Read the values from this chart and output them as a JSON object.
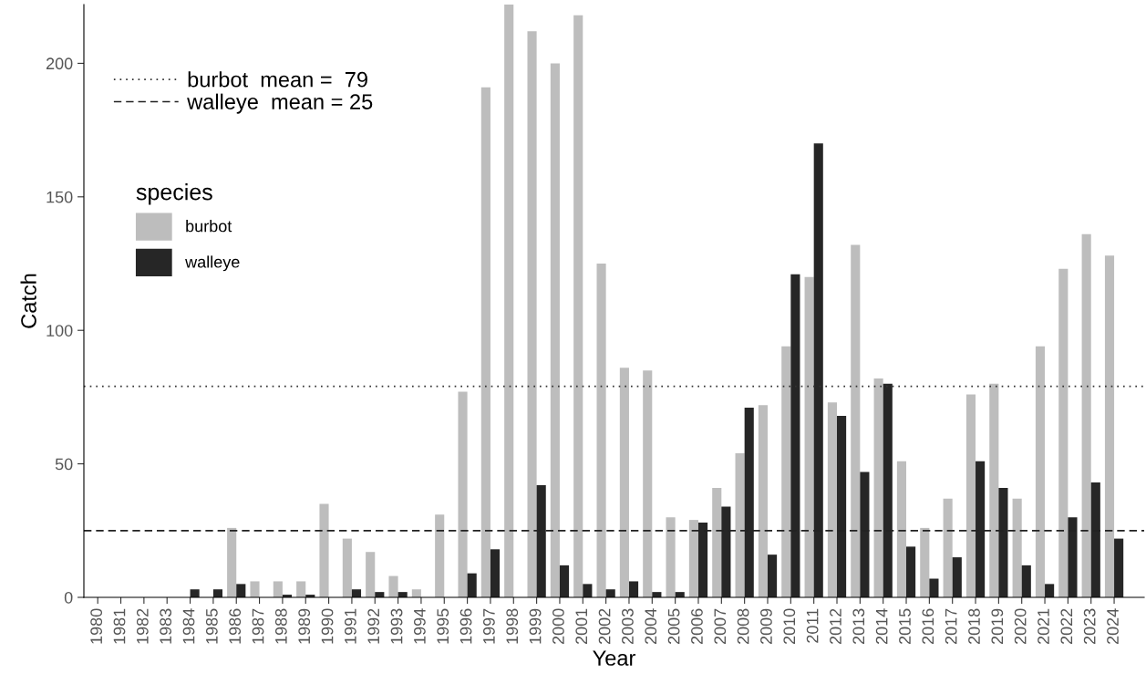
{
  "chart_data": {
    "type": "bar",
    "xlabel": "Year",
    "ylabel": "Catch",
    "legend_title": "species",
    "categories": [
      "1980",
      "1981",
      "1982",
      "1983",
      "1984",
      "1985",
      "1986",
      "1987",
      "1988",
      "1989",
      "1990",
      "1991",
      "1992",
      "1993",
      "1994",
      "1995",
      "1996",
      "1997",
      "1998",
      "1999",
      "2000",
      "2001",
      "2002",
      "2003",
      "2004",
      "2005",
      "2006",
      "2007",
      "2008",
      "2009",
      "2010",
      "2011",
      "2012",
      "2013",
      "2014",
      "2015",
      "2016",
      "2017",
      "2018",
      "2019",
      "2020",
      "2021",
      "2022",
      "2023",
      "2024"
    ],
    "series": [
      {
        "name": "burbot",
        "color": "#bdbdbd",
        "values": [
          0,
          0,
          0,
          0,
          0,
          0,
          26,
          6,
          6,
          6,
          35,
          22,
          17,
          8,
          3,
          31,
          77,
          191,
          222,
          212,
          200,
          218,
          125,
          86,
          85,
          30,
          29,
          41,
          54,
          72,
          94,
          120,
          73,
          132,
          82,
          51,
          26,
          37,
          76,
          80,
          37,
          94,
          123,
          136,
          128
        ]
      },
      {
        "name": "walleye",
        "color": "#262626",
        "values": [
          0,
          0,
          0,
          0,
          3,
          3,
          5,
          0,
          1,
          1,
          0,
          3,
          2,
          2,
          0,
          0,
          9,
          18,
          0,
          42,
          12,
          5,
          3,
          6,
          2,
          2,
          28,
          34,
          71,
          16,
          121,
          170,
          68,
          47,
          80,
          19,
          7,
          15,
          51,
          41,
          12,
          5,
          30,
          43,
          22
        ]
      }
    ],
    "ylim": [
      0,
      222
    ],
    "yticks": [
      0,
      50,
      100,
      150,
      200
    ],
    "grid": false,
    "legend": "left",
    "ref_lines": [
      {
        "axis": "y",
        "value": 79,
        "label": "burbot  mean =  79",
        "color": "#333333",
        "line_style": "dotted"
      },
      {
        "axis": "y",
        "value": 25,
        "label": "walleye  mean = 25",
        "color": "#222222",
        "line_style": "dashed"
      }
    ]
  }
}
